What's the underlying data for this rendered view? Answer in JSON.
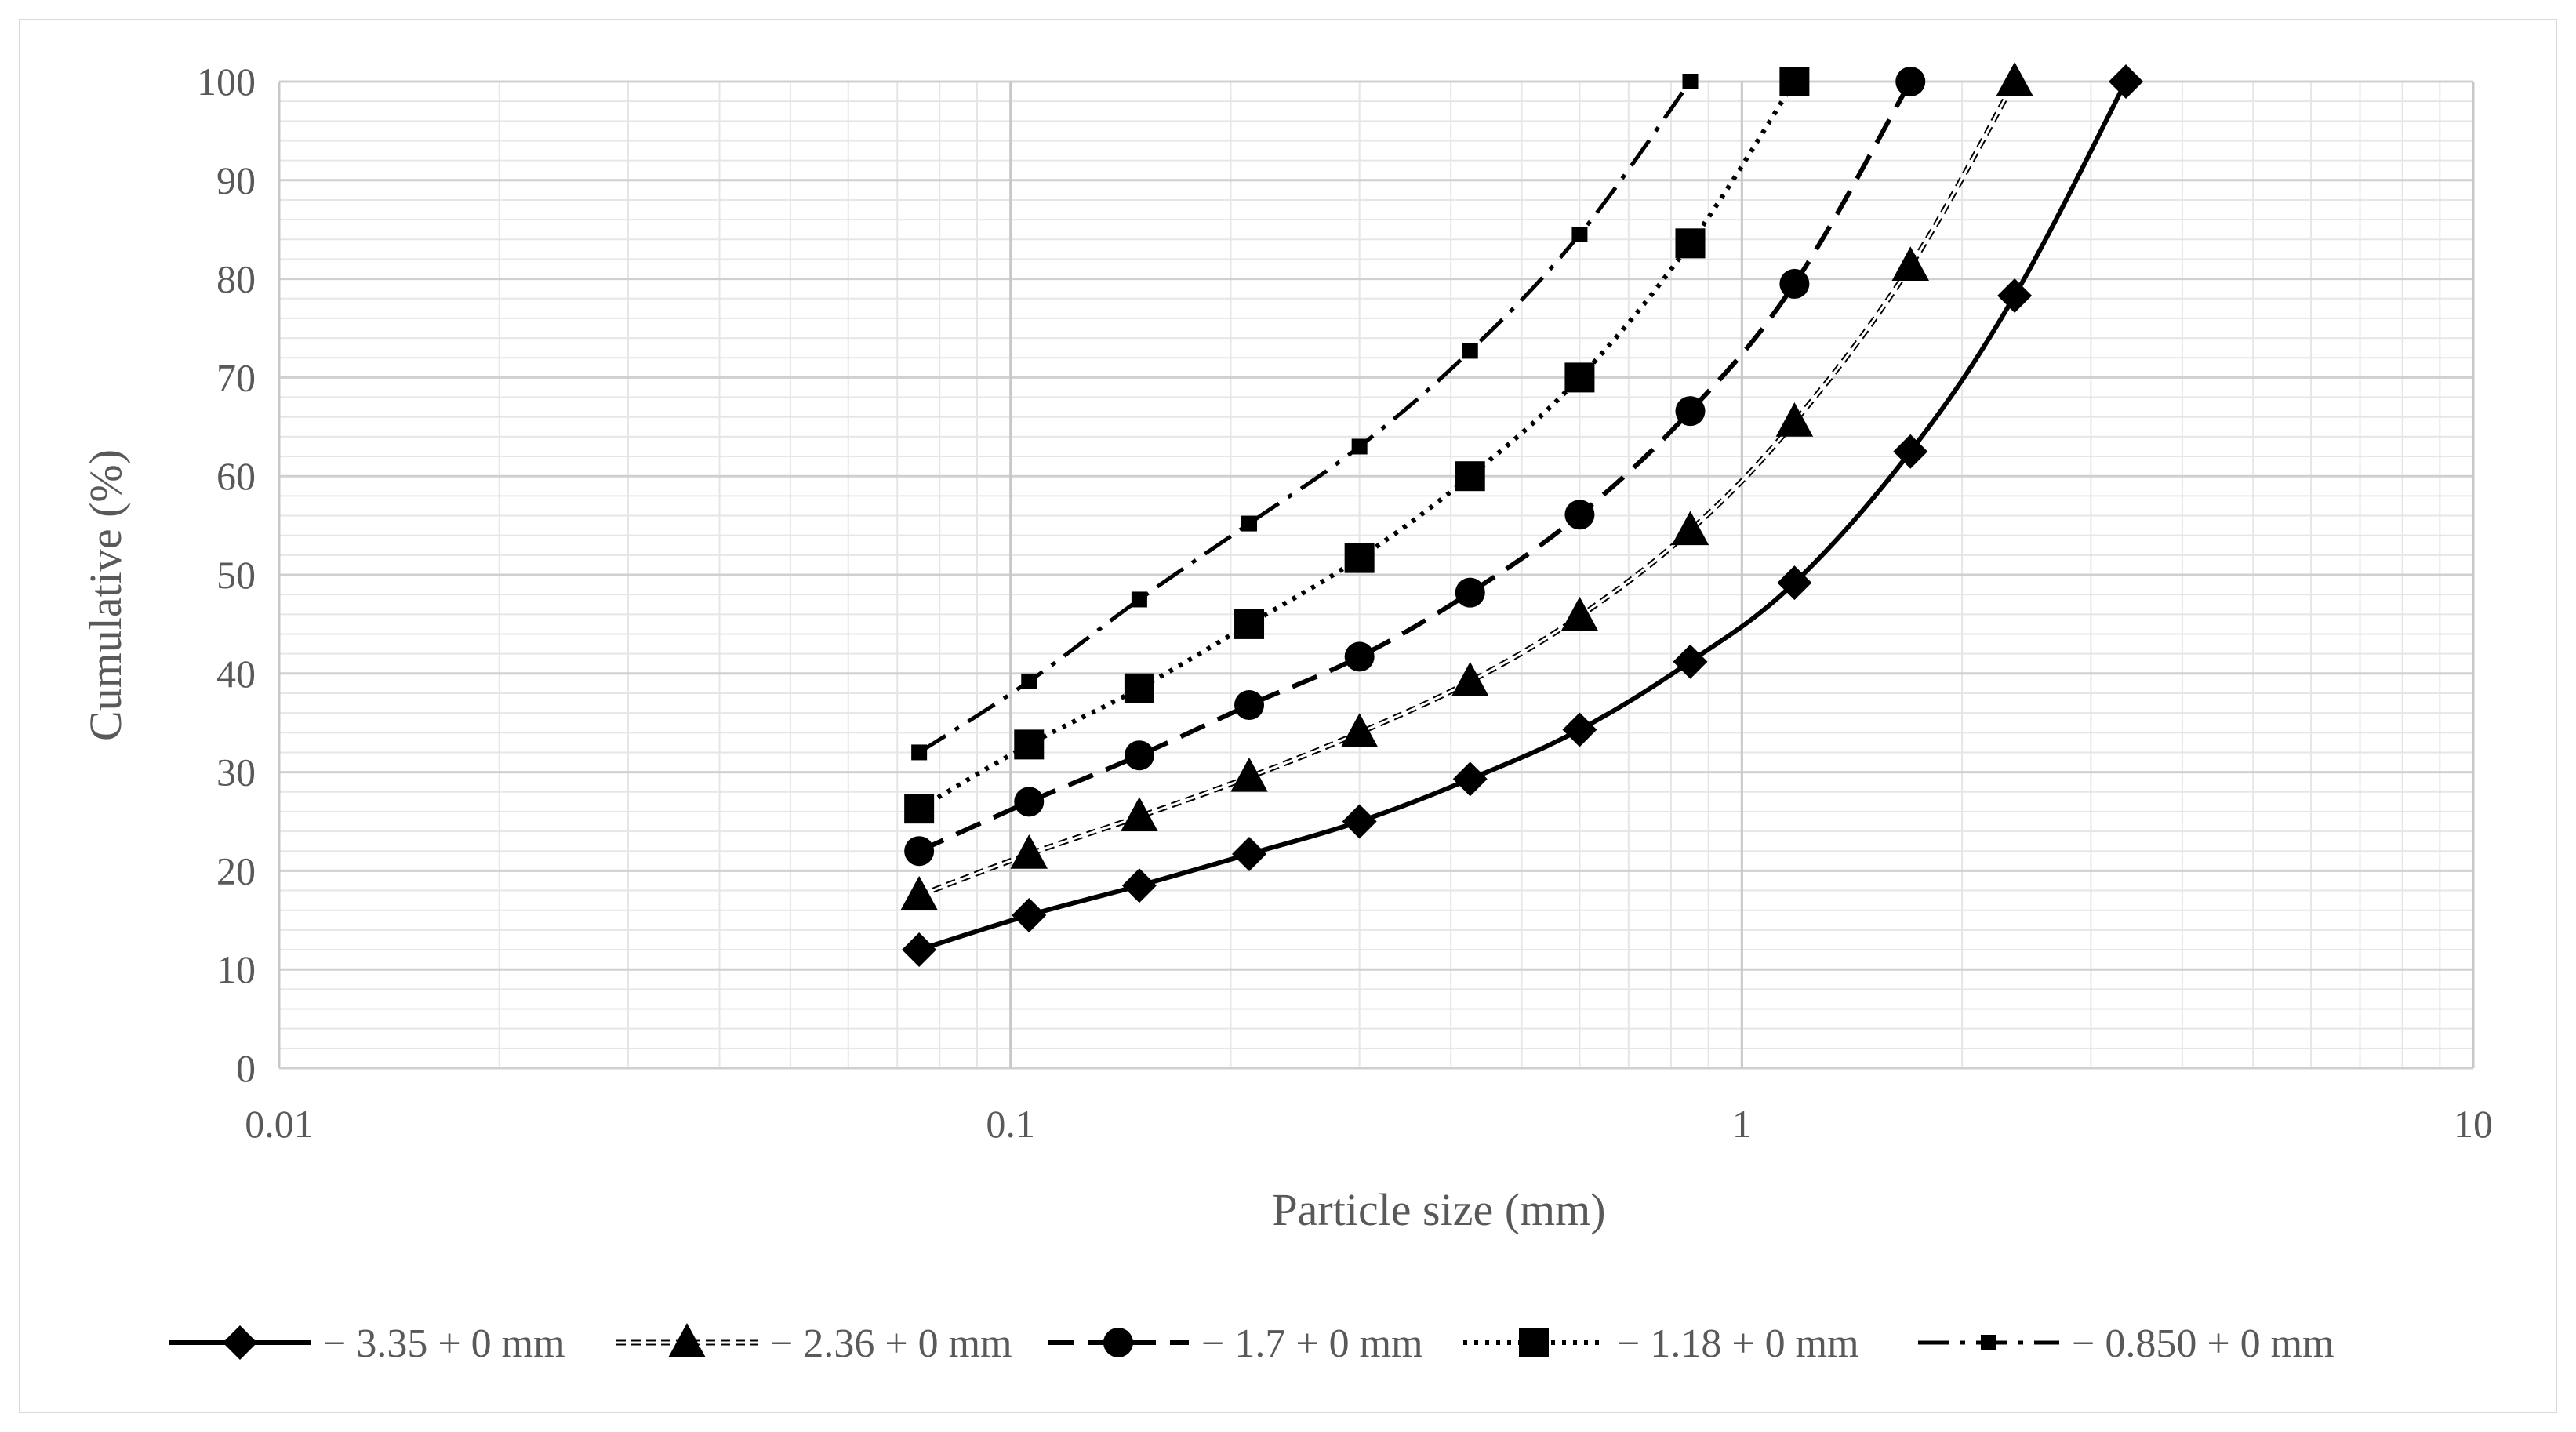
{
  "chart_data": {
    "type": "scatter",
    "title": "",
    "xlabel": "Particle size (mm)",
    "ylabel": "Cumulative (%)",
    "xscale": "log",
    "xlim": [
      0.01,
      10
    ],
    "ylim": [
      0,
      100
    ],
    "x_ticks": [
      "0.01",
      "0.1",
      "1",
      "10"
    ],
    "y_ticks": [
      "0",
      "10",
      "20",
      "30",
      "40",
      "50",
      "60",
      "70",
      "80",
      "90",
      "100"
    ],
    "grid": true,
    "legend_position": "bottom",
    "series": [
      {
        "name": "− 3.35 + 0 mm",
        "marker": "diamond",
        "line": "solid",
        "x": [
          0.075,
          0.106,
          0.15,
          0.212,
          0.3,
          0.425,
          0.6,
          0.85,
          1.18,
          1.7,
          2.36,
          3.35
        ],
        "values": [
          12,
          15.5,
          18.5,
          21.7,
          25,
          29.3,
          34.3,
          41.2,
          49.2,
          62.5,
          78.3,
          100
        ]
      },
      {
        "name": "− 2.36 + 0 mm",
        "marker": "triangle",
        "line": "double-dashed",
        "x": [
          0.075,
          0.106,
          0.15,
          0.212,
          0.3,
          0.425,
          0.6,
          0.85,
          1.18,
          1.7,
          2.36
        ],
        "values": [
          17.5,
          21.7,
          25.5,
          29.5,
          34,
          39.2,
          45.8,
          54.5,
          65.5,
          81.3,
          100
        ]
      },
      {
        "name": "− 1.7 + 0 mm",
        "marker": "circle",
        "line": "dashed",
        "x": [
          0.075,
          0.106,
          0.15,
          0.212,
          0.3,
          0.425,
          0.6,
          0.85,
          1.18,
          1.7
        ],
        "values": [
          22,
          27,
          31.7,
          36.8,
          41.7,
          48.2,
          56.1,
          66.6,
          79.5,
          100
        ]
      },
      {
        "name": "− 1.18 + 0 mm",
        "marker": "square",
        "line": "dotted",
        "x": [
          0.075,
          0.106,
          0.15,
          0.212,
          0.3,
          0.425,
          0.6,
          0.85,
          1.18
        ],
        "values": [
          26.3,
          32.8,
          38.5,
          45,
          51.7,
          60,
          70,
          83.6,
          100
        ]
      },
      {
        "name": "− 0.850 + 0 mm",
        "marker": "small-square",
        "line": "dash-dot",
        "x": [
          0.075,
          0.106,
          0.15,
          0.212,
          0.3,
          0.425,
          0.6,
          0.85
        ],
        "values": [
          32,
          39.2,
          47.5,
          55.2,
          63,
          72.7,
          84.5,
          100
        ]
      }
    ]
  }
}
